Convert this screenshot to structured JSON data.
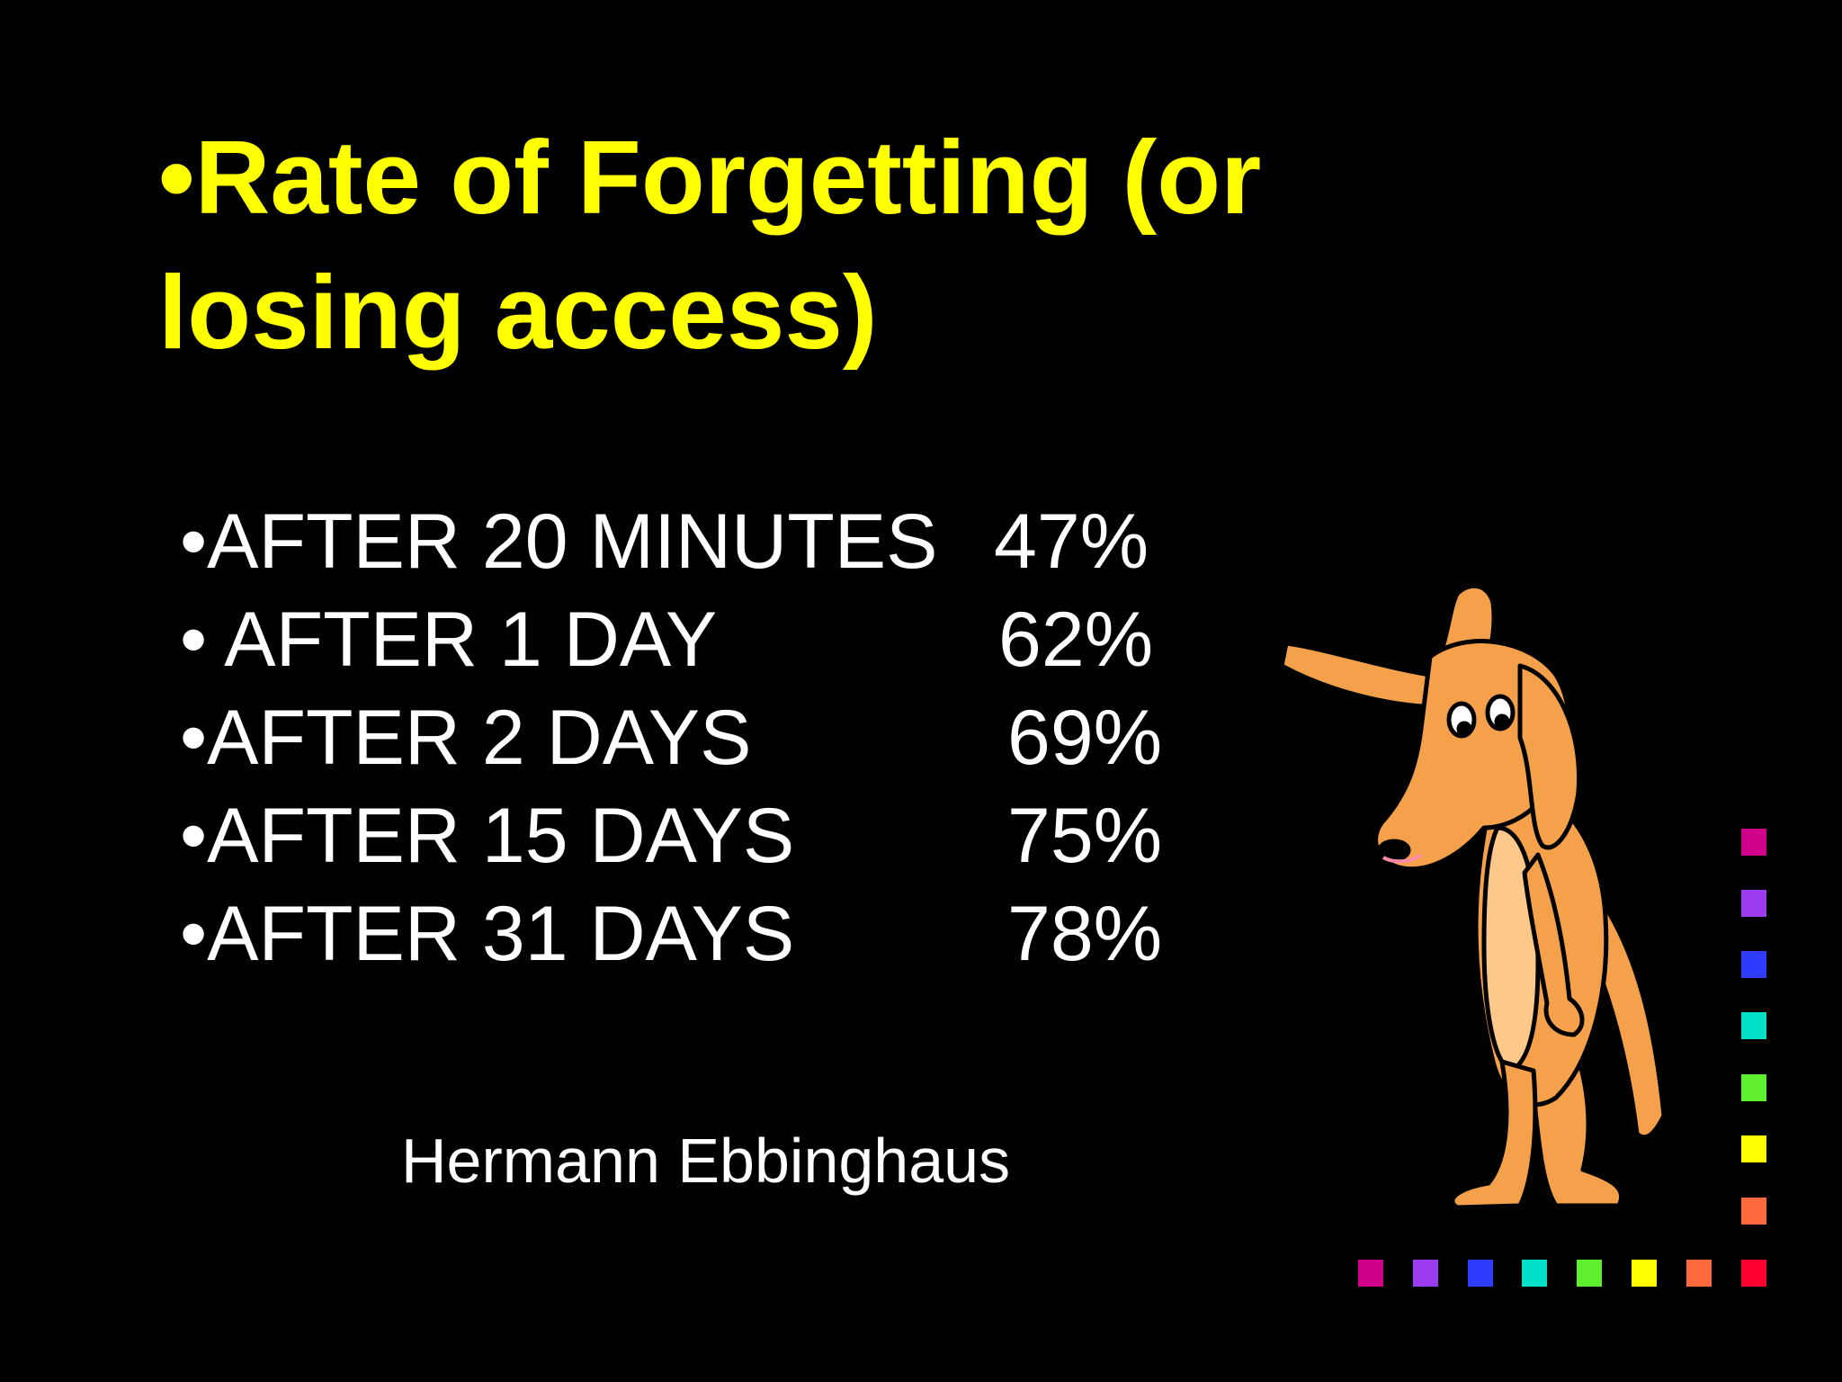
{
  "slide": {
    "title_bullet": "•",
    "title_line1": "Rate of Forgetting (or",
    "title_line2": "losing access)",
    "rows": [
      {
        "label": "•AFTER 20 MINUTES",
        "percent": "47%"
      },
      {
        "label": "• AFTER 1 DAY",
        "percent": "62%"
      },
      {
        "label": "•AFTER 2 DAYS",
        "percent": "69%"
      },
      {
        "label": "•AFTER 15 DAYS",
        "percent": "75%"
      },
      {
        "label": "•AFTER 31 DAYS",
        "percent": "78%"
      }
    ],
    "author": "Hermann Ebbinghaus"
  },
  "colors": {
    "title": "#ffff00",
    "text": "#ffffff",
    "background": "#000000",
    "dog_fur": "#f5a04a",
    "dog_belly": "#fcc98a",
    "squares": [
      "#d0008a",
      "#9b3cf0",
      "#2e3cff",
      "#00e0c8",
      "#5ef02e",
      "#ffff00",
      "#ff6a3c",
      "#ff0030"
    ]
  },
  "illustration": {
    "name": "confused-dog-scratching-head"
  }
}
